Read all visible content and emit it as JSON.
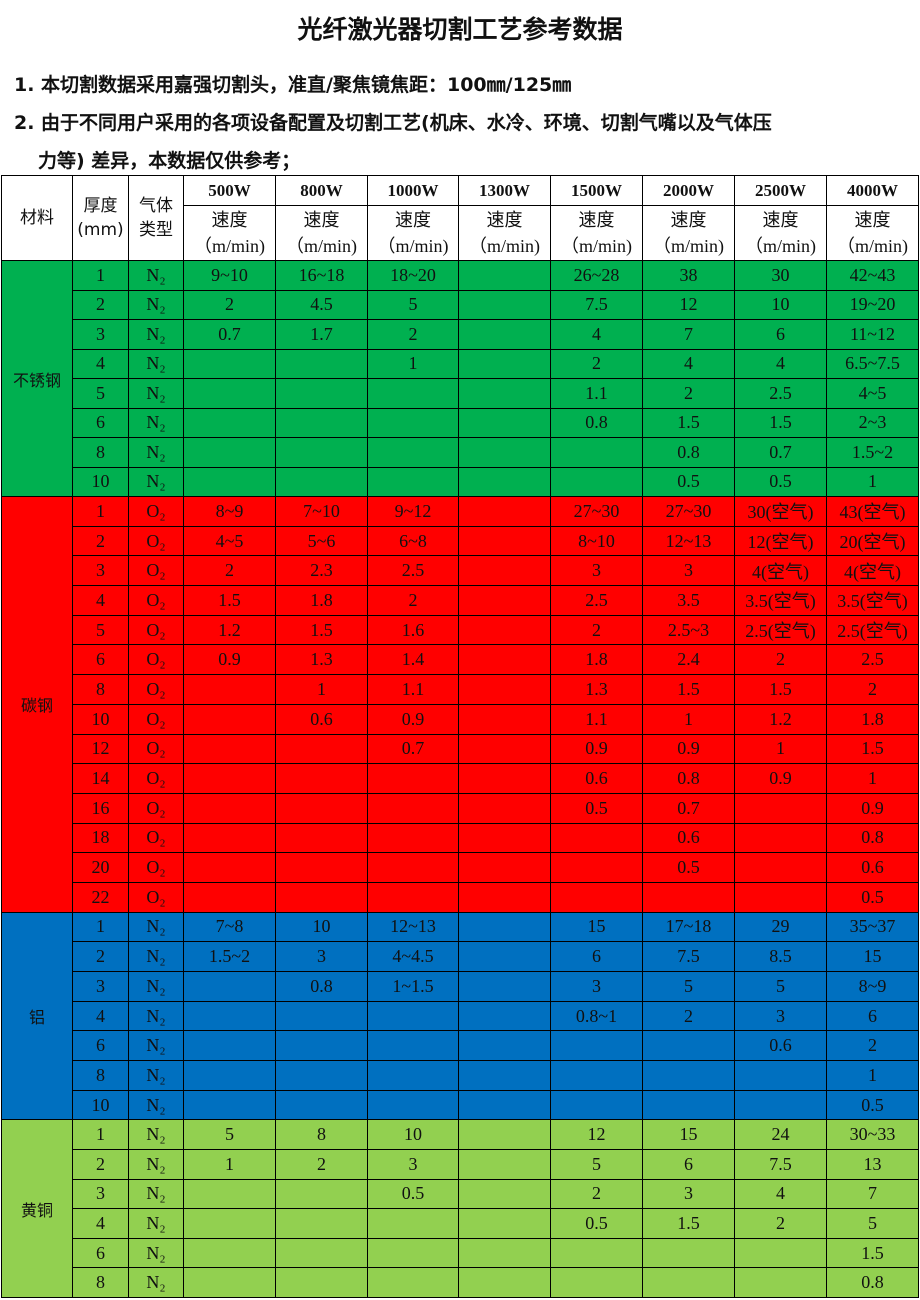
{
  "title": "光纤激光器切割工艺参考数据",
  "notes": [
    "1. 本切割数据采用嘉强切割头，准直/聚焦镜焦距：100㎜/125㎜",
    "2. 由于不同用户采用的各项设备配置及切割工艺(机床、水冷、环境、切割气嘴以及气体压",
    "力等) 差异，本数据仅供参考；"
  ],
  "table": {
    "headers": {
      "material": "材料",
      "thickness": "厚度\n(mm)",
      "gas": "气体\n类型",
      "powers": [
        "500W",
        "800W",
        "1000W",
        "1300W",
        "1500W",
        "2000W",
        "2500W",
        "4000W"
      ],
      "speed": "速度\n（m/min)"
    },
    "groups": [
      {
        "material": "不锈钢",
        "color": "#00b050",
        "rows": [
          [
            "1",
            "N₂",
            "9~10",
            "16~18",
            "18~20",
            "",
            "26~28",
            "38",
            "30",
            "42~43"
          ],
          [
            "2",
            "N₂",
            "2",
            "4.5",
            "5",
            "",
            "7.5",
            "12",
            "10",
            "19~20"
          ],
          [
            "3",
            "N₂",
            "0.7",
            "1.7",
            "2",
            "",
            "4",
            "7",
            "6",
            "11~12"
          ],
          [
            "4",
            "N₂",
            "",
            "",
            "1",
            "",
            "2",
            "4",
            "4",
            "6.5~7.5"
          ],
          [
            "5",
            "N₂",
            "",
            "",
            "",
            "",
            "1.1",
            "2",
            "2.5",
            "4~5"
          ],
          [
            "6",
            "N₂",
            "",
            "",
            "",
            "",
            "0.8",
            "1.5",
            "1.5",
            "2~3"
          ],
          [
            "8",
            "N₂",
            "",
            "",
            "",
            "",
            "",
            "0.8",
            "0.7",
            "1.5~2"
          ],
          [
            "10",
            "N₂",
            "",
            "",
            "",
            "",
            "",
            "0.5",
            "0.5",
            "1"
          ]
        ]
      },
      {
        "material": "碳钢",
        "color": "#ff0000",
        "rows": [
          [
            "1",
            "O₂",
            "8~9",
            "7~10",
            "9~12",
            "",
            "27~30",
            "27~30",
            "30(空气)",
            "43(空气)"
          ],
          [
            "2",
            "O₂",
            "4~5",
            "5~6",
            "6~8",
            "",
            "8~10",
            "12~13",
            "12(空气)",
            "20(空气)"
          ],
          [
            "3",
            "O₂",
            "2",
            "2.3",
            "2.5",
            "",
            "3",
            "3",
            "4(空气)",
            "4(空气)"
          ],
          [
            "4",
            "O₂",
            "1.5",
            "1.8",
            "2",
            "",
            "2.5",
            "3.5",
            "3.5(空气)",
            "3.5(空气)"
          ],
          [
            "5",
            "O₂",
            "1.2",
            "1.5",
            "1.6",
            "",
            "2",
            "2.5~3",
            "2.5(空气)",
            "2.5(空气)"
          ],
          [
            "6",
            "O₂",
            "0.9",
            "1.3",
            "1.4",
            "",
            "1.8",
            "2.4",
            "2",
            "2.5"
          ],
          [
            "8",
            "O₂",
            "",
            "1",
            "1.1",
            "",
            "1.3",
            "1.5",
            "1.5",
            "2"
          ],
          [
            "10",
            "O₂",
            "",
            "0.6",
            "0.9",
            "",
            "1.1",
            "1",
            "1.2",
            "1.8"
          ],
          [
            "12",
            "O₂",
            "",
            "",
            "0.7",
            "",
            "0.9",
            "0.9",
            "1",
            "1.5"
          ],
          [
            "14",
            "O₂",
            "",
            "",
            "",
            "",
            "0.6",
            "0.8",
            "0.9",
            "1"
          ],
          [
            "16",
            "O₂",
            "",
            "",
            "",
            "",
            "0.5",
            "0.7",
            "",
            "0.9"
          ],
          [
            "18",
            "O₂",
            "",
            "",
            "",
            "",
            "",
            "0.6",
            "",
            "0.8"
          ],
          [
            "20",
            "O₂",
            "",
            "",
            "",
            "",
            "",
            "0.5",
            "",
            "0.6"
          ],
          [
            "22",
            "O₂",
            "",
            "",
            "",
            "",
            "",
            "",
            "",
            "0.5"
          ]
        ]
      },
      {
        "material": "铝",
        "color": "#0070c0",
        "rows": [
          [
            "1",
            "N₂",
            "7~8",
            "10",
            "12~13",
            "",
            "15",
            "17~18",
            "29",
            "35~37"
          ],
          [
            "2",
            "N₂",
            "1.5~2",
            "3",
            "4~4.5",
            "",
            "6",
            "7.5",
            "8.5",
            "15"
          ],
          [
            "3",
            "N₂",
            "",
            "0.8",
            "1~1.5",
            "",
            "3",
            "5",
            "5",
            "8~9"
          ],
          [
            "4",
            "N₂",
            "",
            "",
            "",
            "",
            "0.8~1",
            "2",
            "3",
            "6"
          ],
          [
            "6",
            "N₂",
            "",
            "",
            "",
            "",
            "",
            "",
            "0.6",
            "2"
          ],
          [
            "8",
            "N₂",
            "",
            "",
            "",
            "",
            "",
            "",
            "",
            "1"
          ],
          [
            "10",
            "N₂",
            "",
            "",
            "",
            "",
            "",
            "",
            "",
            "0.5"
          ]
        ]
      },
      {
        "material": "黄铜",
        "color": "#92d050",
        "rows": [
          [
            "1",
            "N₂",
            "5",
            "8",
            "10",
            "",
            "12",
            "15",
            "24",
            "30~33"
          ],
          [
            "2",
            "N₂",
            "1",
            "2",
            "3",
            "",
            "5",
            "6",
            "7.5",
            "13"
          ],
          [
            "3",
            "N₂",
            "",
            "",
            "0.5",
            "",
            "2",
            "3",
            "4",
            "7"
          ],
          [
            "4",
            "N₂",
            "",
            "",
            "",
            "",
            "0.5",
            "1.5",
            "2",
            "5"
          ],
          [
            "6",
            "N₂",
            "",
            "",
            "",
            "",
            "",
            "",
            "",
            "1.5"
          ],
          [
            "8",
            "N₂",
            "",
            "",
            "",
            "",
            "",
            "",
            "",
            "0.8"
          ]
        ]
      }
    ]
  }
}
